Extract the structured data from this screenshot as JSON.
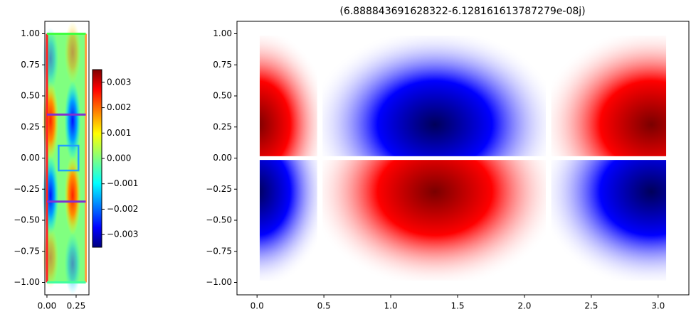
{
  "chart_data": [
    {
      "type": "heatmap",
      "colormap": "jet",
      "xlim": [
        -0.018,
        0.36
      ],
      "ylim": [
        -1.1,
        1.1
      ],
      "xticks": [
        {
          "value": 0,
          "label": "0.00"
        },
        {
          "value": 0.25,
          "label": "0.25"
        }
      ],
      "yticks": [
        {
          "value": 1,
          "label": "1.00"
        },
        {
          "value": 0.75,
          "label": "0.75"
        },
        {
          "value": 0.5,
          "label": "0.50"
        },
        {
          "value": 0.25,
          "label": "0.25"
        },
        {
          "value": 0,
          "label": "0.00"
        },
        {
          "value": -0.25,
          "label": "−0.25"
        },
        {
          "value": -0.5,
          "label": "−0.50"
        },
        {
          "value": -0.75,
          "label": "−0.75"
        },
        {
          "value": -1,
          "label": "−1.00"
        }
      ],
      "colorbar": {
        "lim": [
          -0.0035,
          0.0035
        ],
        "ticks": [
          0.003,
          0.002,
          0.001,
          {
            "value": 0,
            "label": "0.000"
          },
          {
            "value": -0.001,
            "label": "−0.001"
          },
          {
            "value": -0.002,
            "label": "−0.002"
          },
          {
            "value": -0.003,
            "label": "−0.003"
          }
        ]
      }
    },
    {
      "type": "heatmap",
      "colormap": "seismic",
      "title": "(6.888843691628322-6.128161613787279e-08j)",
      "xlim": [
        -0.15,
        3.23
      ],
      "ylim": [
        -1.1,
        1.1
      ],
      "xticks": [
        {
          "value": 0,
          "label": "0.0"
        },
        0.5,
        {
          "value": 1,
          "label": "1.0"
        },
        1.5,
        {
          "value": 2,
          "label": "2.0"
        },
        2.5,
        {
          "value": 3,
          "label": "3.0"
        }
      ],
      "yticks": [
        {
          "value": 1,
          "label": "1.00"
        },
        {
          "value": 0.75,
          "label": "0.75"
        },
        {
          "value": 0.5,
          "label": "0.50"
        },
        {
          "value": 0.25,
          "label": "0.25"
        },
        {
          "value": 0,
          "label": "0.00"
        },
        {
          "value": -0.25,
          "label": "−0.25"
        },
        {
          "value": -0.5,
          "label": "−0.50"
        },
        {
          "value": -0.75,
          "label": "−0.75"
        },
        {
          "value": -1,
          "label": "−1.00"
        }
      ]
    }
  ]
}
